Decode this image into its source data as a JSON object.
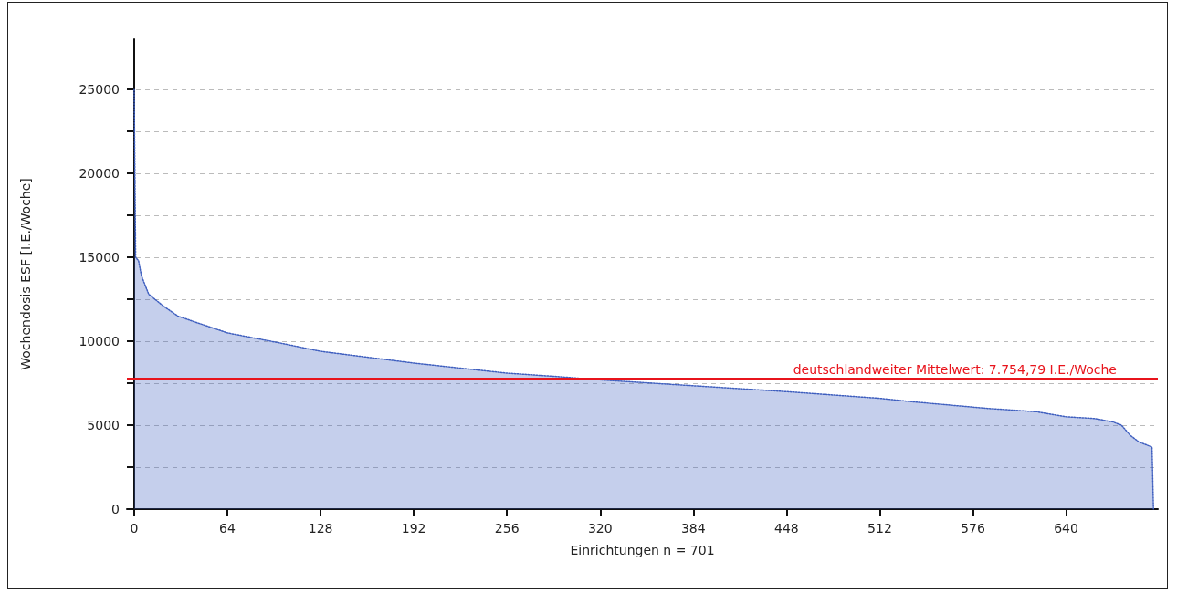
{
  "chart_data": {
    "type": "area",
    "xlabel": "Einrichtungen n = 701",
    "ylabel": "Wochendosis ESF [I.E./Woche]",
    "x": [
      0,
      1,
      3,
      5,
      10,
      20,
      30,
      40,
      64,
      100,
      128,
      192,
      256,
      290,
      320,
      384,
      448,
      512,
      534,
      586,
      620,
      640,
      659,
      672,
      678,
      684,
      690,
      699,
      700
    ],
    "series": [
      {
        "color": "#3f5fbf",
        "values": [
          25000,
          15000,
          14800,
          13900,
          12800,
          12100,
          11500,
          11200,
          10500,
          9900,
          9400,
          8700,
          8100,
          7900,
          7700,
          7350,
          7000,
          6600,
          6400,
          6000,
          5800,
          5500,
          5400,
          5200,
          5000,
          4400,
          4000,
          3700,
          0
        ]
      }
    ],
    "xlim": [
      -5,
      703
    ],
    "ylim": [
      0,
      28000
    ],
    "xticks": [
      0,
      64,
      128,
      192,
      256,
      320,
      384,
      448,
      512,
      576,
      640
    ],
    "yticks": [
      0,
      {
        "value": 2500,
        "label": null
      },
      5000,
      {
        "value": 7500,
        "label": null
      },
      10000,
      {
        "value": 12500,
        "label": null
      },
      15000,
      {
        "value": 17500,
        "label": null
      },
      20000,
      {
        "value": 22500,
        "label": null
      },
      25000
    ],
    "grid": "y",
    "marker": "none",
    "line_style": "dotted",
    "ref_lines": [
      {
        "axis": "y",
        "value": 7754.79,
        "label": "deutschlandweiter Mittelwert: 7.754,79 I.E./Woche",
        "color": "#e8141c",
        "line_style": "solid"
      }
    ]
  }
}
